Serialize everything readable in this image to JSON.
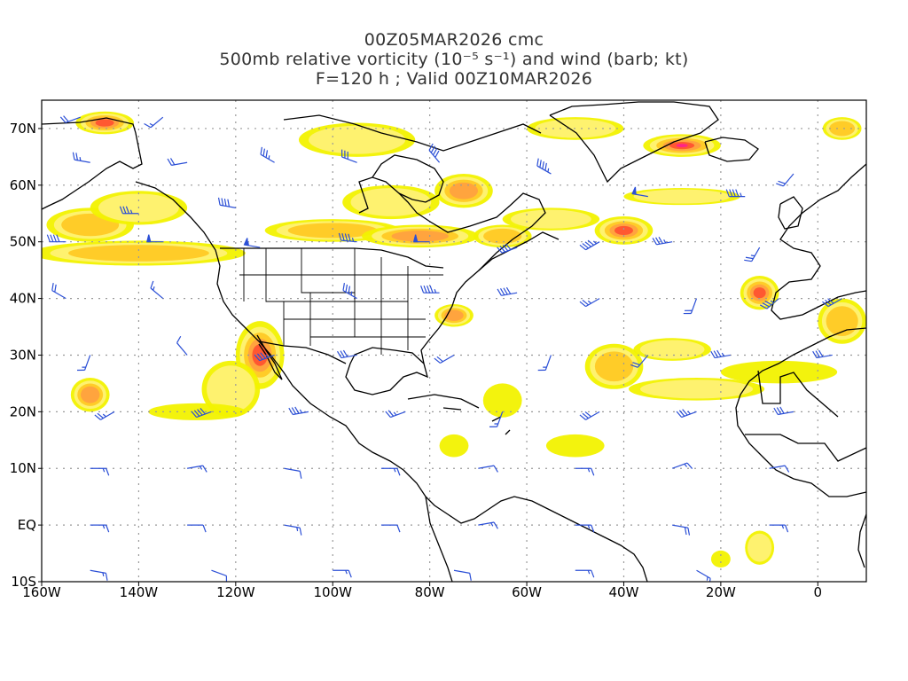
{
  "title": {
    "line1": "00Z05MAR2026 cmc",
    "line2": "500mb relative vorticity (10⁻⁵ s⁻¹) and wind (barb; kt)",
    "line3": "F=120 h ; Valid 00Z10MAR2026"
  },
  "map": {
    "lon_range": [
      -160,
      10
    ],
    "lat_range": [
      -10,
      75
    ],
    "lon_ticks": [
      {
        "lon": -160,
        "label": "160W"
      },
      {
        "lon": -140,
        "label": "140W"
      },
      {
        "lon": -120,
        "label": "120W"
      },
      {
        "lon": -100,
        "label": "100W"
      },
      {
        "lon": -80,
        "label": "80W"
      },
      {
        "lon": -60,
        "label": "60W"
      },
      {
        "lon": -40,
        "label": "40W"
      },
      {
        "lon": -20,
        "label": "20W"
      },
      {
        "lon": 0,
        "label": "0"
      }
    ],
    "lat_ticks": [
      {
        "lat": -10,
        "label": "10S"
      },
      {
        "lat": 0,
        "label": "EQ"
      },
      {
        "lat": 10,
        "label": "10N"
      },
      {
        "lat": 20,
        "label": "20N"
      },
      {
        "lat": 30,
        "label": "30N"
      },
      {
        "lat": 40,
        "label": "40N"
      },
      {
        "lat": 50,
        "label": "50N"
      },
      {
        "lat": 60,
        "label": "60N"
      },
      {
        "lat": 70,
        "label": "70N"
      }
    ],
    "colors": {
      "frame": "#000000",
      "grid": "#999999",
      "coast": "#000000",
      "barb": "#2b4fd6",
      "vort_levels": [
        "#f2f200",
        "#fff27a",
        "#ffc820",
        "#ffa040",
        "#ff5030",
        "#ff2090"
      ]
    },
    "vorticity_blobs": [
      {
        "lon": -147,
        "lat": 71,
        "rlon": 6,
        "rlat": 2,
        "level": 4
      },
      {
        "lon": -140,
        "lat": 48,
        "rlon": 22,
        "rlat": 2.2,
        "level": 2
      },
      {
        "lon": -150,
        "lat": 53,
        "rlon": 9,
        "rlat": 3,
        "level": 2
      },
      {
        "lon": -140,
        "lat": 56,
        "rlon": 10,
        "rlat": 3,
        "level": 1
      },
      {
        "lon": -115,
        "lat": 30,
        "rlon": 5,
        "rlat": 6,
        "level": 4
      },
      {
        "lon": -121,
        "lat": 24,
        "rlon": 6,
        "rlat": 5,
        "level": 1
      },
      {
        "lon": -128,
        "lat": 20,
        "rlon": 10,
        "rlat": 1.5,
        "level": 0
      },
      {
        "lon": -150,
        "lat": 23,
        "rlon": 4,
        "rlat": 3,
        "level": 3
      },
      {
        "lon": -100,
        "lat": 52,
        "rlon": 14,
        "rlat": 2,
        "level": 2
      },
      {
        "lon": -82,
        "lat": 51,
        "rlon": 12,
        "rlat": 2,
        "level": 3
      },
      {
        "lon": -88,
        "lat": 57,
        "rlon": 10,
        "rlat": 3,
        "level": 1
      },
      {
        "lon": -73,
        "lat": 59,
        "rlon": 6,
        "rlat": 3,
        "level": 3
      },
      {
        "lon": -95,
        "lat": 68,
        "rlon": 12,
        "rlat": 3,
        "level": 1
      },
      {
        "lon": -65,
        "lat": 51,
        "rlon": 6,
        "rlat": 2,
        "level": 2
      },
      {
        "lon": -75,
        "lat": 37,
        "rlon": 4,
        "rlat": 2,
        "level": 3
      },
      {
        "lon": -40,
        "lat": 52,
        "rlon": 6,
        "rlat": 2.5,
        "level": 4
      },
      {
        "lon": -55,
        "lat": 54,
        "rlon": 10,
        "rlat": 2,
        "level": 1
      },
      {
        "lon": -28,
        "lat": 58,
        "rlon": 12,
        "rlat": 1.5,
        "level": 1
      },
      {
        "lon": -28,
        "lat": 67,
        "rlon": 8,
        "rlat": 2,
        "level": 5
      },
      {
        "lon": -50,
        "lat": 70,
        "rlon": 10,
        "rlat": 2,
        "level": 1
      },
      {
        "lon": -12,
        "lat": 41,
        "rlon": 4,
        "rlat": 3,
        "level": 4
      },
      {
        "lon": -42,
        "lat": 28,
        "rlon": 6,
        "rlat": 4,
        "level": 2
      },
      {
        "lon": -30,
        "lat": 31,
        "rlon": 8,
        "rlat": 2,
        "level": 1
      },
      {
        "lon": -25,
        "lat": 24,
        "rlon": 14,
        "rlat": 2,
        "level": 1
      },
      {
        "lon": -8,
        "lat": 27,
        "rlon": 12,
        "rlat": 2,
        "level": 0
      },
      {
        "lon": -65,
        "lat": 22,
        "rlon": 4,
        "rlat": 3,
        "level": 0
      },
      {
        "lon": -75,
        "lat": 14,
        "rlon": 3,
        "rlat": 2,
        "level": 0
      },
      {
        "lon": -50,
        "lat": 14,
        "rlon": 6,
        "rlat": 2,
        "level": 0
      },
      {
        "lon": -12,
        "lat": -4,
        "rlon": 3,
        "rlat": 3,
        "level": 1
      },
      {
        "lon": -20,
        "lat": -6,
        "rlon": 2,
        "rlat": 1.5,
        "level": 0
      },
      {
        "lon": 5,
        "lat": 70,
        "rlon": 4,
        "rlat": 2,
        "level": 2
      },
      {
        "lon": 5,
        "lat": 36,
        "rlon": 5,
        "rlat": 4,
        "level": 2
      }
    ],
    "wind_barbs": [
      {
        "lon": -152,
        "lat": 72,
        "dir": 250,
        "kt": 20
      },
      {
        "lon": -135,
        "lat": 72,
        "dir": 230,
        "kt": 15
      },
      {
        "lon": -150,
        "lat": 64,
        "dir": 280,
        "kt": 25
      },
      {
        "lon": -130,
        "lat": 64,
        "dir": 260,
        "kt": 20
      },
      {
        "lon": -112,
        "lat": 64,
        "dir": 300,
        "kt": 35
      },
      {
        "lon": -95,
        "lat": 64,
        "dir": 290,
        "kt": 30
      },
      {
        "lon": -78,
        "lat": 64,
        "dir": 320,
        "kt": 40
      },
      {
        "lon": -55,
        "lat": 62,
        "dir": 300,
        "kt": 45
      },
      {
        "lon": -35,
        "lat": 58,
        "dir": 280,
        "kt": 50
      },
      {
        "lon": -15,
        "lat": 58,
        "dir": 270,
        "kt": 45
      },
      {
        "lon": -5,
        "lat": 62,
        "dir": 220,
        "kt": 20
      },
      {
        "lon": -140,
        "lat": 55,
        "dir": 270,
        "kt": 35
      },
      {
        "lon": -120,
        "lat": 56,
        "dir": 280,
        "kt": 40
      },
      {
        "lon": -155,
        "lat": 50,
        "dir": 270,
        "kt": 40
      },
      {
        "lon": -135,
        "lat": 50,
        "dir": 270,
        "kt": 50
      },
      {
        "lon": -115,
        "lat": 49,
        "dir": 280,
        "kt": 55
      },
      {
        "lon": -95,
        "lat": 50,
        "dir": 275,
        "kt": 45
      },
      {
        "lon": -80,
        "lat": 50,
        "dir": 270,
        "kt": 50
      },
      {
        "lon": -62,
        "lat": 49,
        "dir": 250,
        "kt": 40
      },
      {
        "lon": -45,
        "lat": 50,
        "dir": 240,
        "kt": 45
      },
      {
        "lon": -30,
        "lat": 50,
        "dir": 260,
        "kt": 35
      },
      {
        "lon": -12,
        "lat": 49,
        "dir": 210,
        "kt": 25
      },
      {
        "lon": -155,
        "lat": 40,
        "dir": 300,
        "kt": 20
      },
      {
        "lon": -135,
        "lat": 40,
        "dir": 310,
        "kt": 15
      },
      {
        "lon": -95,
        "lat": 40,
        "dir": 300,
        "kt": 35
      },
      {
        "lon": -78,
        "lat": 41,
        "dir": 270,
        "kt": 45
      },
      {
        "lon": -62,
        "lat": 41,
        "dir": 260,
        "kt": 40
      },
      {
        "lon": -45,
        "lat": 40,
        "dir": 240,
        "kt": 25
      },
      {
        "lon": -25,
        "lat": 40,
        "dir": 200,
        "kt": 20
      },
      {
        "lon": -8,
        "lat": 40,
        "dir": 230,
        "kt": 35
      },
      {
        "lon": 5,
        "lat": 40,
        "dir": 240,
        "kt": 30
      },
      {
        "lon": -150,
        "lat": 30,
        "dir": 200,
        "kt": 15
      },
      {
        "lon": -130,
        "lat": 30,
        "dir": 320,
        "kt": 10
      },
      {
        "lon": -112,
        "lat": 30,
        "dir": 250,
        "kt": 35
      },
      {
        "lon": -95,
        "lat": 30,
        "dir": 260,
        "kt": 30
      },
      {
        "lon": -75,
        "lat": 30,
        "dir": 240,
        "kt": 20
      },
      {
        "lon": -55,
        "lat": 30,
        "dir": 200,
        "kt": 15
      },
      {
        "lon": -35,
        "lat": 30,
        "dir": 220,
        "kt": 20
      },
      {
        "lon": -18,
        "lat": 30,
        "dir": 260,
        "kt": 35
      },
      {
        "lon": 3,
        "lat": 30,
        "dir": 260,
        "kt": 30
      },
      {
        "lon": -145,
        "lat": 20,
        "dir": 240,
        "kt": 25
      },
      {
        "lon": -125,
        "lat": 20,
        "dir": 250,
        "kt": 40
      },
      {
        "lon": -105,
        "lat": 20,
        "dir": 260,
        "kt": 35
      },
      {
        "lon": -85,
        "lat": 20,
        "dir": 250,
        "kt": 25
      },
      {
        "lon": -65,
        "lat": 20,
        "dir": 200,
        "kt": 15
      },
      {
        "lon": -45,
        "lat": 20,
        "dir": 240,
        "kt": 30
      },
      {
        "lon": -25,
        "lat": 20,
        "dir": 250,
        "kt": 35
      },
      {
        "lon": -5,
        "lat": 20,
        "dir": 260,
        "kt": 30
      },
      {
        "lon": -150,
        "lat": 10,
        "dir": 90,
        "kt": 15
      },
      {
        "lon": -130,
        "lat": 10,
        "dir": 80,
        "kt": 15
      },
      {
        "lon": -110,
        "lat": 10,
        "dir": 100,
        "kt": 10
      },
      {
        "lon": -90,
        "lat": 10,
        "dir": 90,
        "kt": 15
      },
      {
        "lon": -70,
        "lat": 10,
        "dir": 80,
        "kt": 10
      },
      {
        "lon": -50,
        "lat": 10,
        "dir": 90,
        "kt": 15
      },
      {
        "lon": -30,
        "lat": 10,
        "dir": 70,
        "kt": 15
      },
      {
        "lon": -10,
        "lat": 10,
        "dir": 80,
        "kt": 10
      },
      {
        "lon": -150,
        "lat": 0,
        "dir": 90,
        "kt": 15
      },
      {
        "lon": -130,
        "lat": 0,
        "dir": 90,
        "kt": 10
      },
      {
        "lon": -110,
        "lat": 0,
        "dir": 100,
        "kt": 15
      },
      {
        "lon": -90,
        "lat": 0,
        "dir": 90,
        "kt": 10
      },
      {
        "lon": -70,
        "lat": 0,
        "dir": 80,
        "kt": 15
      },
      {
        "lon": -50,
        "lat": 0,
        "dir": 90,
        "kt": 15
      },
      {
        "lon": -30,
        "lat": 0,
        "dir": 100,
        "kt": 20
      },
      {
        "lon": -10,
        "lat": 0,
        "dir": 90,
        "kt": 15
      },
      {
        "lon": -150,
        "lat": -8,
        "dir": 100,
        "kt": 15
      },
      {
        "lon": -125,
        "lat": -8,
        "dir": 110,
        "kt": 10
      },
      {
        "lon": -100,
        "lat": -8,
        "dir": 90,
        "kt": 15
      },
      {
        "lon": -75,
        "lat": -8,
        "dir": 100,
        "kt": 10
      },
      {
        "lon": -50,
        "lat": -8,
        "dir": 90,
        "kt": 15
      },
      {
        "lon": -25,
        "lat": -8,
        "dir": 120,
        "kt": 15
      }
    ]
  }
}
